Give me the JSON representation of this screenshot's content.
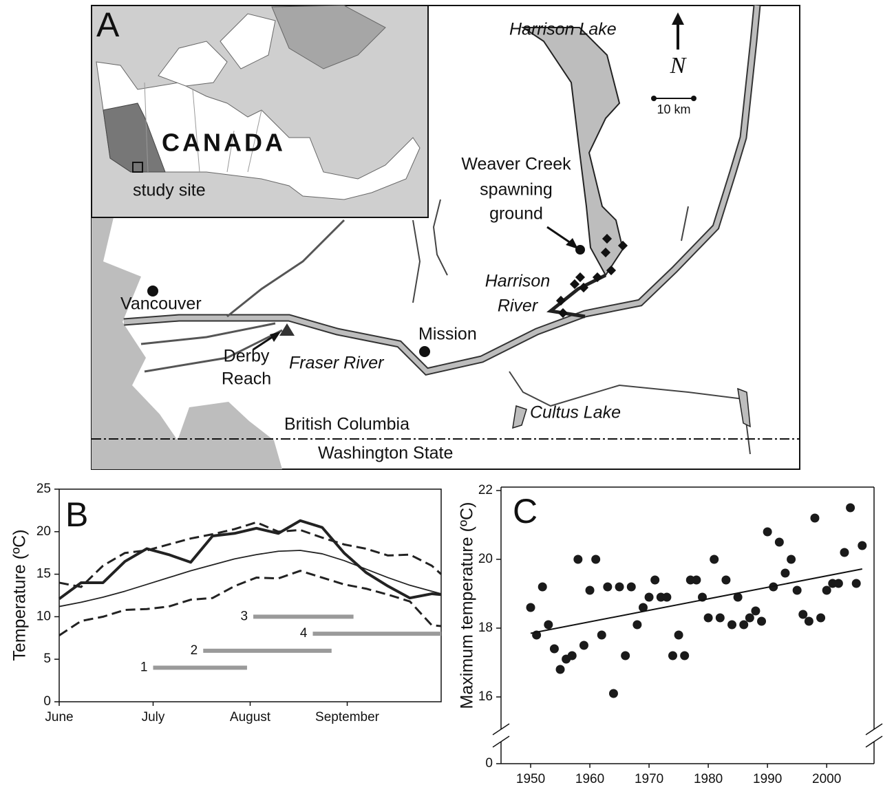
{
  "map": {
    "panel": "A",
    "north": "N",
    "scale": "10 km",
    "labels": {
      "harrison_lake": "Harrison Lake",
      "weaver_creek": [
        "Weaver Creek",
        "spawning",
        "ground"
      ],
      "harrison_river": [
        "Harrison",
        "River"
      ],
      "vancouver": "Vancouver",
      "mission": "Mission",
      "derby_reach": [
        "Derby",
        "Reach"
      ],
      "fraser_river": "Fraser River",
      "cultus_lake": "Cultus Lake",
      "british_columbia": "British Columbia",
      "washington_state": "Washington State"
    },
    "inset": {
      "country": "CANADA",
      "site": "study site"
    }
  },
  "chart_data": [
    {
      "type": "line",
      "panel": "B",
      "ylabel": "Temperature (ºC)",
      "x": [
        0,
        7,
        14,
        21,
        28,
        35,
        42,
        49,
        56,
        63,
        70,
        77,
        84,
        91,
        98,
        105,
        112,
        119,
        122
      ],
      "xlim": [
        0,
        122
      ],
      "xticks": [
        {
          "value": 0,
          "label": "June"
        },
        {
          "value": 30,
          "label": "July"
        },
        {
          "value": 61,
          "label": "August"
        },
        {
          "value": 92,
          "label": "September"
        }
      ],
      "ylim": [
        0,
        25
      ],
      "yticks": [
        0,
        5,
        10,
        15,
        20,
        25
      ],
      "series": [
        {
          "color": "#222",
          "style": "dashed",
          "values": [
            14,
            13.5,
            16,
            17.5,
            17.8,
            18.5,
            19.2,
            19.7,
            20.3,
            21.1,
            20.0,
            20.2,
            19.3,
            18.5,
            18.0,
            17.2,
            17.3,
            16.0,
            15.0
          ]
        },
        {
          "color": "#222",
          "style": "thick",
          "values": [
            12.1,
            14.0,
            14.0,
            16.5,
            18.0,
            17.3,
            16.4,
            19.5,
            19.8,
            20.4,
            19.8,
            21.3,
            20.5,
            17.5,
            15.2,
            13.6,
            12.2,
            12.7,
            12.6
          ]
        },
        {
          "color": "#222",
          "style": "thin",
          "values": [
            11.2,
            11.7,
            12.3,
            13.0,
            13.8,
            14.6,
            15.4,
            16.1,
            16.8,
            17.3,
            17.7,
            17.8,
            17.4,
            16.6,
            15.6,
            14.6,
            13.7,
            13.0,
            12.7
          ]
        },
        {
          "color": "#222",
          "style": "dashed",
          "values": [
            7.8,
            9.5,
            10.0,
            10.8,
            10.9,
            11.2,
            12.0,
            12.2,
            13.6,
            14.6,
            14.5,
            15.4,
            14.6,
            13.8,
            13.3,
            12.6,
            11.8,
            9.0,
            8.9
          ]
        }
      ],
      "ranges": [
        {
          "label": 1,
          "start": 30,
          "end": 60,
          "y": 4
        },
        {
          "label": 2,
          "start": 46,
          "end": 87,
          "y": 6
        },
        {
          "label": 3,
          "start": 62,
          "end": 94,
          "y": 10
        },
        {
          "label": 4,
          "start": 81,
          "end": 122,
          "y": 8
        }
      ],
      "range_color": "#9a9a9a"
    },
    {
      "type": "scatter",
      "panel": "C",
      "ylabel": "Maximum temperature (ºC)",
      "x": [
        1950,
        1951,
        1952,
        1953,
        1954,
        1955,
        1956,
        1957,
        1958,
        1959,
        1960,
        1961,
        1962,
        1963,
        1964,
        1965,
        1966,
        1967,
        1968,
        1969,
        1970,
        1971,
        1972,
        1973,
        1974,
        1975,
        1976,
        1977,
        1978,
        1979,
        1980,
        1981,
        1982,
        1983,
        1984,
        1985,
        1986,
        1987,
        1988,
        1989,
        1990,
        1991,
        1992,
        1993,
        1994,
        1995,
        1996,
        1997,
        1998,
        1999,
        2000,
        2001,
        2002,
        2003,
        2004,
        2005,
        2006
      ],
      "values": [
        18.6,
        17.8,
        19.2,
        18.1,
        17.4,
        16.8,
        17.1,
        17.2,
        20.0,
        17.5,
        19.1,
        20.0,
        17.8,
        19.2,
        16.1,
        19.2,
        17.2,
        19.2,
        18.1,
        18.6,
        18.9,
        19.4,
        18.9,
        18.9,
        17.2,
        17.8,
        17.2,
        19.4,
        19.4,
        18.9,
        18.3,
        20.0,
        18.3,
        19.4,
        18.1,
        18.9,
        18.1,
        18.3,
        18.5,
        18.2,
        20.8,
        19.2,
        20.5,
        19.6,
        20.0,
        19.1,
        18.4,
        18.2,
        21.2,
        18.3,
        19.1,
        19.3,
        19.3,
        20.2,
        21.5,
        19.3,
        20.4
      ],
      "color": "#1a1a1a",
      "xlim": [
        1945,
        2008
      ],
      "xticks": [
        1950,
        1960,
        1970,
        1980,
        1990,
        2000
      ],
      "ylim": [
        15.2,
        22
      ],
      "yticks": [
        0,
        16,
        18,
        20,
        22
      ],
      "axis_break": true,
      "trend": {
        "x": [
          1950,
          2006
        ],
        "y": [
          17.85,
          19.72
        ]
      }
    }
  ]
}
